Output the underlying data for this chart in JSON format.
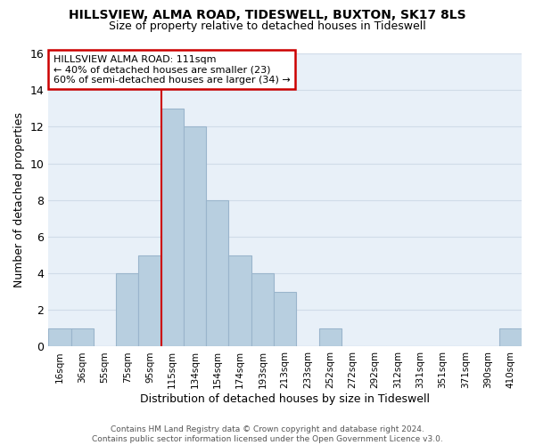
{
  "title1": "HILLSVIEW, ALMA ROAD, TIDESWELL, BUXTON, SK17 8LS",
  "title2": "Size of property relative to detached houses in Tideswell",
  "xlabel": "Distribution of detached houses by size in Tideswell",
  "ylabel": "Number of detached properties",
  "bin_labels": [
    "16sqm",
    "36sqm",
    "55sqm",
    "75sqm",
    "95sqm",
    "115sqm",
    "134sqm",
    "154sqm",
    "174sqm",
    "193sqm",
    "213sqm",
    "233sqm",
    "252sqm",
    "272sqm",
    "292sqm",
    "312sqm",
    "331sqm",
    "351sqm",
    "371sqm",
    "390sqm",
    "410sqm"
  ],
  "bar_heights": [
    1,
    1,
    0,
    4,
    5,
    13,
    12,
    8,
    5,
    4,
    3,
    0,
    1,
    0,
    0,
    0,
    0,
    0,
    0,
    0,
    1
  ],
  "bar_color": "#b8cfe0",
  "bar_edge_color": "#9ab5cc",
  "highlight_line_color": "#cc0000",
  "annotation_title": "HILLSVIEW ALMA ROAD: 111sqm",
  "annotation_line1": "← 40% of detached houses are smaller (23)",
  "annotation_line2": "60% of semi-detached houses are larger (34) →",
  "annotation_box_color": "#ffffff",
  "annotation_box_edge": "#cc0000",
  "ylim": [
    0,
    16
  ],
  "yticks": [
    0,
    2,
    4,
    6,
    8,
    10,
    12,
    14,
    16
  ],
  "footer1": "Contains HM Land Registry data © Crown copyright and database right 2024.",
  "footer2": "Contains public sector information licensed under the Open Government Licence v3.0.",
  "grid_color": "#d0dce8",
  "bg_color": "#e8f0f8"
}
